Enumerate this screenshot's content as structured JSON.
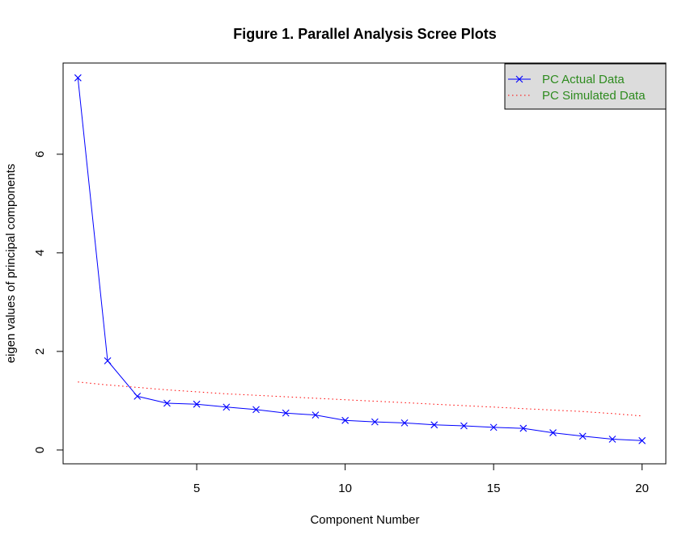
{
  "chart_data": {
    "type": "line",
    "title": "Figure 1. Parallel Analysis Scree Plots",
    "xlabel": "Component Number",
    "ylabel": "eigen values of principal components",
    "xlim": [
      0.5,
      20.8
    ],
    "ylim": [
      -0.28,
      7.85
    ],
    "x_ticks": [
      5,
      10,
      15,
      20
    ],
    "y_ticks": [
      0,
      2,
      4,
      6
    ],
    "grid": false,
    "legend_position": "top-right",
    "x": [
      1,
      2,
      3,
      4,
      5,
      6,
      7,
      8,
      9,
      10,
      11,
      12,
      13,
      14,
      15,
      16,
      17,
      18,
      19,
      20
    ],
    "series": [
      {
        "name": "PC  Actual Data",
        "color": "#0000ff",
        "style": "solid",
        "marker": "x",
        "values": [
          7.55,
          1.81,
          1.09,
          0.95,
          0.93,
          0.87,
          0.82,
          0.75,
          0.71,
          0.6,
          0.57,
          0.55,
          0.51,
          0.49,
          0.46,
          0.44,
          0.35,
          0.28,
          0.22,
          0.19
        ]
      },
      {
        "name": "PC  Simulated Data",
        "color": "#ff0000",
        "style": "dotted",
        "marker": "none",
        "values": [
          1.38,
          1.32,
          1.27,
          1.22,
          1.18,
          1.14,
          1.11,
          1.08,
          1.05,
          1.02,
          0.99,
          0.96,
          0.93,
          0.9,
          0.87,
          0.84,
          0.81,
          0.78,
          0.74,
          0.69
        ]
      }
    ]
  }
}
